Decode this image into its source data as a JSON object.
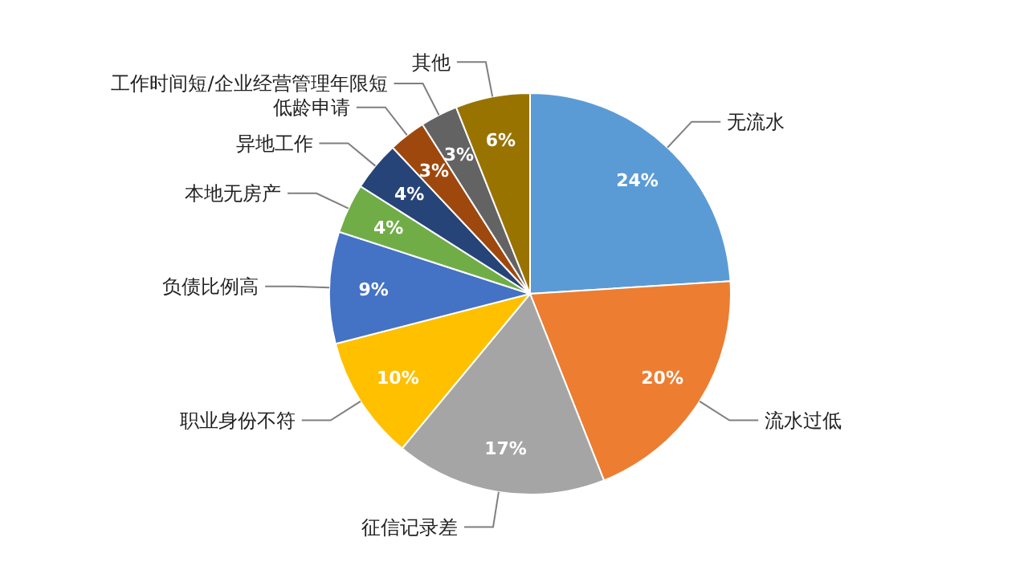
{
  "chart_data": {
    "type": "pie",
    "categories": [
      "无流水",
      "流水过低",
      "征信记录差",
      "职业身份不符",
      "负债比例高",
      "本地无房产",
      "异地工作",
      "低龄申请",
      "工作时间短/企业经营管理年限短",
      "其他"
    ],
    "values": [
      24,
      20,
      17,
      10,
      9,
      4,
      4,
      3,
      3,
      6
    ],
    "value_labels": [
      "24%",
      "20%",
      "17%",
      "10%",
      "9%",
      "4%",
      "4%",
      "3%",
      "3%",
      "6%"
    ],
    "colors": [
      "#5b9bd5",
      "#ed7d31",
      "#a5a5a5",
      "#ffc000",
      "#4472c4",
      "#70ad47",
      "#264478",
      "#9e480e",
      "#636363",
      "#997300"
    ]
  }
}
